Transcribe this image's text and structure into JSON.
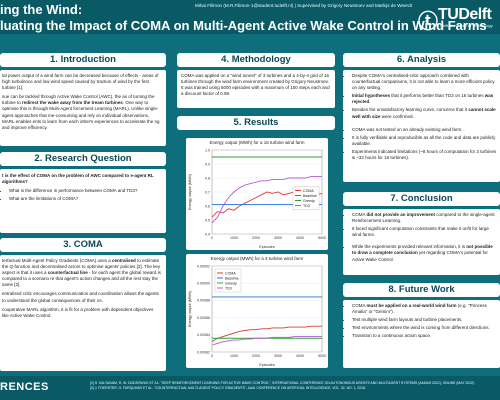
{
  "header": {
    "title_line1": "ing the Wind:",
    "title_line2": "luating the Impact of COMA on Multi-Agent Active Wake Control in Wind Farms",
    "authors": "Mihai Filimon (M.R.Filimon-1@student.tudelft.nl) | Supervised by Grigory Neustroev and Mathijs de Weerdt",
    "logo_word": "TUDelft",
    "logo_sub": "Delft University of Technology"
  },
  "sections": {
    "intro": {
      "heading": "1. Introduction",
      "p1": "tal power output of a wind farm can be decreased because of effects - areas of high turbulence and low wind speed caused by traction of wind by the first turbine [1].",
      "p2a": "sue can be tackled through Active Wake Control (AWC), the as of turning the turbine to ",
      "p2b": "redirect the wake away from the tream turbines",
      "p2c": ". One way to optimise this is through Multi-Agent forcement Learning (MARL). Unlike single-agent approaches that me-consuming and rely on individual observations, MARL enables ents to learn from each other's experiences to accelerate the ng and improve efficiency."
    },
    "question": {
      "heading": "2. Research Question",
      "q_bold": "t is the effect of COMA on the problem of AWC compared to e-agent RL algorithms?",
      "q1": "What is the difference in performance between COMA and TD3?",
      "q2": "What are the limitations of COMA?"
    },
    "coma": {
      "heading": "3. COMA",
      "p1a": "terfactual Multi-Agent Policy Gradients (COMA) uses a ",
      "p1b": "centralised",
      "p1c": " to estimate the Q-function and decentralised actors to optimise agents' policies [2]. The key aspect is that it uses a ",
      "p1d": "counterfactual line",
      "p1e": " - for each agent the global reward is compared to a scenario re that agent's action changes and all the rest stay the same [2].",
      "p2": "entralised critic encourages communication and coordination allows the agents to understand the global consequences of their ns.",
      "p3": "cooperative MARL algorithm, it is fit for a problem with dependent objectives like Active Wake Control."
    },
    "method": {
      "heading": "4. Methodology",
      "p1": "COMA was applied on a \"wind tunnel\" of 3 turbines and a 4-by-4 grid of 16 turbines through the wind farm environment created by Grigory Neustroev. It was trained using 5000 episodes with a maximum of 100 steps each and a discount factor of 0.99."
    },
    "results": {
      "heading": "5. Results"
    },
    "analysis": {
      "heading": "6. Analysis",
      "i1a": "Despite COMA's centralised-critic approach combined with counterfactual comparisons, it is not able to learn a more efficient policy on any setting.",
      "i2a": "Initial hypotheses",
      "i2b": " that it performs better than TD3 on 16 turbines ",
      "i2c": "was rejected",
      "i2d": ".",
      "i3a": "Besides the unsatisfactory learning curve, concerns that it ",
      "i3b": "cannot scale well with size",
      "i3c": " were confirmed.",
      "i4": "COMA was not tested on an already existing wind farm.",
      "i5": "It is fully verifiable and reproducible as all the code and data are publicly available.",
      "i6": "Experiments indicated limitations (~8 hours of computation for 3 turbines & ~32 hours for 16 turbines)."
    },
    "conclusion": {
      "heading": "7. Conclusion",
      "i1a": "COMA ",
      "i1b": "did not provide an improvement",
      "i1c": " compared to the single-agent Reinforcement Learning.",
      "i2": "It faced significant computation constraints that make it unfit for large wind farms.",
      "i3a": "While the experiments provided relevant information, it is ",
      "i3b": "not possible to draw a complete conclusion",
      "i3c": " yet regarding COMA's potential for Active Wake Control."
    },
    "future": {
      "heading": "8. Future Work",
      "i1a": "COMA ",
      "i1b": "must be applied on a real-world wind farm",
      "i1c": " (e.g. \"Princess Amalia\" or \"Gemini\").",
      "i2": "Test multiple wind farm layouts and turbine placements.",
      "i3": "Test environments where the wind is coming from different directions.",
      "i4": "Transition to a continuous action space."
    }
  },
  "footer": {
    "label": "RENCES",
    "ref1": "[1] S. KALYANAM, R. W. ZUIDERWIJK ET AL. \"DEEP REINFORCEMENT LEARNING FOR ACTIVE WAKE CONTROL\", INTERNATIONAL CONFERENCE ON AUTONOMOUS AGENTS AND MULTIAGENT SYSTEMS (AAMAS 2022), ONLINE (MAY 2022).",
    "ref2": "[2] J. FOERSTER, G. FARQUHAR ET AL. \"COUNTERFACTUAL MULTI-AGENT POLICY GRADIENTS\", AAAI CONFERENCE ON ARTIFICIAL INTELLIGENCE, VOL. 32, NO. 1, 2018."
  },
  "chart_data": [
    {
      "type": "line",
      "title": "Energy output (MWh) for a 16 turbine wind farm",
      "xlabel": "Episodes",
      "ylabel": "Energy output (MWh)",
      "xlim": [
        0,
        5000
      ],
      "ylim": [
        0.4,
        1.0
      ],
      "xticks": [
        0,
        1000,
        2000,
        3000,
        4000,
        5000
      ],
      "yticks": [
        0.4,
        0.5,
        0.6,
        0.7,
        0.8,
        0.9,
        1.0
      ],
      "legend_position": "center-right",
      "series": [
        {
          "name": "COMA",
          "color": "#e03a2e",
          "x": [
            0,
            250,
            500,
            750,
            1000,
            1250,
            1500,
            1750,
            2000,
            2250,
            2500,
            2750,
            3000,
            3250,
            3500,
            3750,
            4000,
            4250,
            4500,
            4750,
            5000
          ],
          "values": [
            0.52,
            0.56,
            0.55,
            0.58,
            0.57,
            0.6,
            0.62,
            0.64,
            0.66,
            0.68,
            0.7,
            0.69,
            0.7,
            0.68,
            0.69,
            0.7,
            0.67,
            0.69,
            0.7,
            0.68,
            0.69
          ]
        },
        {
          "name": "Baseline",
          "color": "#2b6fd6",
          "x": [
            0,
            5000
          ],
          "values": [
            0.61,
            0.61
          ]
        },
        {
          "name": "Greedy",
          "color": "#2fa02f",
          "x": [
            0,
            5000
          ],
          "values": [
            0.95,
            0.95
          ]
        },
        {
          "name": "TD3",
          "color": "#b05bd9",
          "x": [
            0,
            250,
            500,
            750,
            1000,
            1250,
            1500,
            1750,
            2000,
            2250,
            2500,
            2750,
            3000,
            3250,
            3500,
            3750,
            4000,
            4250,
            4500,
            4750,
            5000
          ],
          "values": [
            0.48,
            0.52,
            0.6,
            0.66,
            0.7,
            0.73,
            0.75,
            0.76,
            0.77,
            0.78,
            0.78,
            0.79,
            0.79,
            0.79,
            0.8,
            0.8,
            0.8,
            0.8,
            0.81,
            0.81,
            0.81
          ]
        }
      ]
    },
    {
      "type": "line",
      "title": "Energy output (MWh) for a 3 turbine wind farm",
      "xlabel": "Episodes",
      "ylabel": "Energy output (MWh)",
      "xlim": [
        0,
        5000
      ],
      "ylim": [
        0.00082,
        0.00092
      ],
      "xticks": [
        0,
        1000,
        2000,
        3000,
        4000,
        5000
      ],
      "yticks": [
        0.00082,
        0.00084,
        0.00086,
        0.00088,
        0.0009,
        0.00092
      ],
      "legend_position": "top-left",
      "series": [
        {
          "name": "COMA",
          "color": "#e03a2e",
          "x": [
            0,
            250,
            500,
            750,
            1000,
            1250,
            1500,
            1750,
            2000,
            2250,
            2500,
            2750,
            3000,
            3250,
            3500,
            3750,
            4000,
            4250,
            4500,
            4750,
            5000
          ],
          "values": [
            0.000832,
            0.000836,
            0.000838,
            0.00084,
            0.000842,
            0.000844,
            0.000845,
            0.000846,
            0.000846,
            0.000847,
            0.000847,
            0.000848,
            0.000848,
            0.000848,
            0.000849,
            0.000849,
            0.000849,
            0.000849,
            0.00085,
            0.00085,
            0.00085
          ]
        },
        {
          "name": "Baseline",
          "color": "#2b6fd6",
          "x": [
            0,
            5000
          ],
          "values": [
            0.000884,
            0.000884
          ]
        },
        {
          "name": "Greedy",
          "color": "#2fa02f",
          "x": [
            0,
            5000
          ],
          "values": [
            0.000836,
            0.000836
          ]
        },
        {
          "name": "TD3",
          "color": "#b05bd9",
          "x": [
            0,
            250,
            500,
            750,
            1000,
            1250,
            1500,
            1750,
            2000,
            2250,
            2500,
            2750,
            3000,
            3250,
            3500,
            3750,
            4000,
            4250,
            4500,
            4750,
            5000
          ],
          "values": [
            0.000828,
            0.00083,
            0.000832,
            0.000833,
            0.000834,
            0.000834,
            0.000835,
            0.000835,
            0.000836,
            0.000836,
            0.000836,
            0.000837,
            0.000837,
            0.000837,
            0.000837,
            0.000838,
            0.000838,
            0.000838,
            0.000838,
            0.000838,
            0.000838
          ]
        }
      ]
    }
  ]
}
